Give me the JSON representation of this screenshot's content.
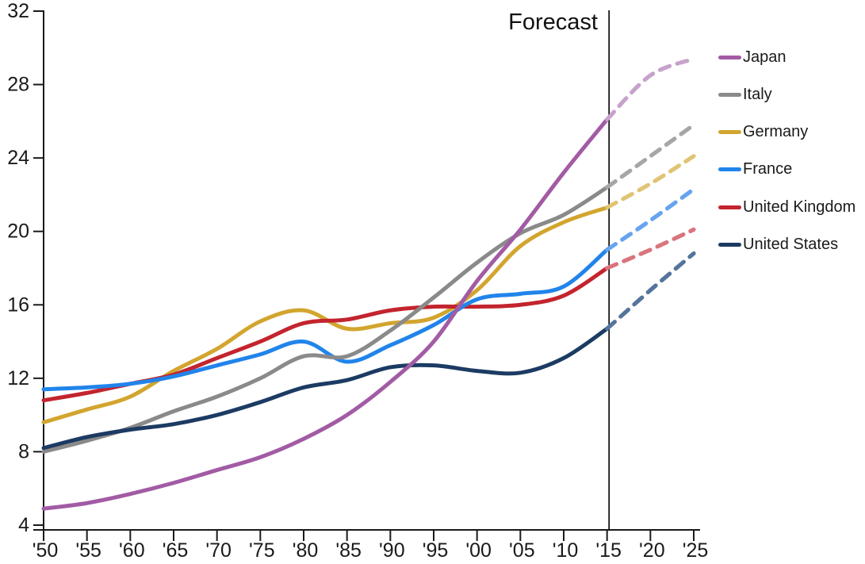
{
  "chart_data": {
    "type": "line",
    "title": "",
    "annotation": "Forecast",
    "grid": false,
    "legend_position": "right",
    "xlim": [
      1950,
      2025
    ],
    "ylim": [
      4,
      32
    ],
    "y_ticks": [
      4,
      8,
      12,
      16,
      20,
      24,
      28,
      32
    ],
    "x_tick_years": [
      1950,
      1955,
      1960,
      1965,
      1970,
      1975,
      1980,
      1985,
      1990,
      1995,
      2000,
      2005,
      2010,
      2015,
      2020,
      2025
    ],
    "x_tick_labels": [
      "'50",
      "'55",
      "'60",
      "'65",
      "'70",
      "'75",
      "'80",
      "'85",
      "'90",
      "'95",
      "'00",
      "'05",
      "'10",
      "'15",
      "'20",
      "'25"
    ],
    "forecast_start_year": 2015,
    "years": [
      1950,
      1955,
      1960,
      1965,
      1970,
      1975,
      1980,
      1985,
      1990,
      1995,
      2000,
      2005,
      2010,
      2015
    ],
    "forecast_years": [
      2015,
      2020,
      2025
    ],
    "series": [
      {
        "name": "Japan",
        "color": "#A25BA4",
        "forecast_color": "#C7A3CC",
        "values": [
          4.9,
          5.2,
          5.7,
          6.3,
          7.0,
          7.7,
          8.7,
          10.0,
          11.8,
          14.0,
          17.3,
          20.1,
          23.2,
          26.1
        ],
        "forecast_values": [
          26.1,
          28.5,
          29.4
        ]
      },
      {
        "name": "Italy",
        "color": "#8A8A8A",
        "forecast_color": "#A6A6A6",
        "values": [
          8.0,
          8.6,
          9.3,
          10.2,
          11.0,
          12.0,
          13.2,
          13.2,
          14.6,
          16.4,
          18.3,
          19.9,
          20.9,
          22.4
        ],
        "forecast_values": [
          22.4,
          24.1,
          25.8
        ]
      },
      {
        "name": "Germany",
        "color": "#D2A52E",
        "forecast_color": "#E0C475",
        "values": [
          9.6,
          10.3,
          11.0,
          12.4,
          13.6,
          15.1,
          15.7,
          14.7,
          15.0,
          15.3,
          16.8,
          19.2,
          20.5,
          21.3
        ],
        "forecast_values": [
          21.3,
          22.6,
          24.1
        ]
      },
      {
        "name": "France",
        "color": "#2184EB",
        "forecast_color": "#66A4F0",
        "values": [
          11.4,
          11.5,
          11.7,
          12.1,
          12.7,
          13.3,
          14.0,
          12.9,
          13.8,
          14.9,
          16.3,
          16.6,
          17.0,
          19.0
        ],
        "forecast_values": [
          19.0,
          20.6,
          22.3
        ]
      },
      {
        "name": "United Kingdom",
        "color": "#C3242E",
        "forecast_color": "#D9747D",
        "values": [
          10.8,
          11.2,
          11.7,
          12.2,
          13.1,
          14.0,
          15.0,
          15.2,
          15.7,
          15.9,
          15.9,
          16.0,
          16.5,
          18.0
        ],
        "forecast_values": [
          18.0,
          19.0,
          20.1
        ]
      },
      {
        "name": "United States",
        "color": "#1C3B63",
        "forecast_color": "#54749B",
        "values": [
          8.2,
          8.8,
          9.2,
          9.5,
          10.0,
          10.7,
          11.5,
          11.9,
          12.6,
          12.7,
          12.4,
          12.3,
          13.1,
          14.7
        ],
        "forecast_values": [
          14.7,
          16.8,
          18.8
        ]
      }
    ]
  }
}
